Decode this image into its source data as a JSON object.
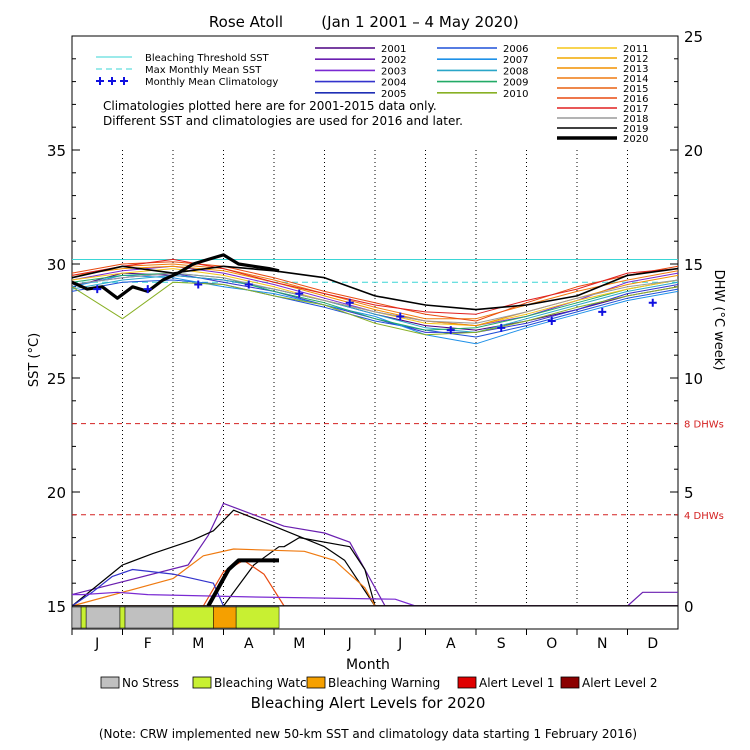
{
  "chart_data": {
    "type": "line",
    "title": "Rose Atoll",
    "date_range": "(Jan 1 2001 – 4 May 2020)",
    "xlabel": "Month",
    "ylabel": "SST (°C)",
    "y2label": "DHW (°C week)",
    "months": [
      "J",
      "F",
      "M",
      "A",
      "M",
      "J",
      "J",
      "A",
      "S",
      "O",
      "N",
      "D"
    ],
    "sst_axis": {
      "min": 15,
      "max": 40,
      "ticks": [
        15,
        20,
        25,
        30,
        35
      ]
    },
    "dhw_axis": {
      "min": 0,
      "max": 25,
      "ticks": [
        0,
        5,
        10,
        15,
        20,
        25
      ]
    },
    "grid": "vertical dotted lines at month boundaries",
    "reference_lines": {
      "bleaching_threshold_sst": 30.2,
      "max_monthly_mean_sst": 29.2,
      "dhw_thresholds": [
        {
          "value": 8,
          "label": "8 DHWs",
          "color": "#d42020"
        },
        {
          "value": 4,
          "label": "4 DHWs",
          "color": "#d42020"
        }
      ]
    },
    "legend_refs": [
      {
        "label": "Bleaching Threshold SST",
        "color": "#3ad6d6",
        "style": "solid"
      },
      {
        "label": "Max Monthly Mean SST",
        "color": "#3ad6d6",
        "style": "dashed"
      },
      {
        "label": "Monthly Mean Climatology",
        "color": "#1010e0",
        "style": "plus"
      }
    ],
    "monthly_mean_climatology": [
      28.9,
      28.9,
      29.1,
      29.1,
      28.7,
      28.3,
      27.7,
      27.1,
      27.2,
      27.5,
      27.9,
      28.3
    ],
    "notes": [
      "Climatologies plotted here are for 2001-2015 data only.",
      "Different SST and climatologies are used for 2016 and later."
    ],
    "years": [
      {
        "name": "2001",
        "color": "#4b0082"
      },
      {
        "name": "2002",
        "color": "#6a1fb0"
      },
      {
        "name": "2003",
        "color": "#7a2ad2"
      },
      {
        "name": "2004",
        "color": "#3333cc"
      },
      {
        "name": "2005",
        "color": "#1f2fb5"
      },
      {
        "name": "2006",
        "color": "#1e50d8"
      },
      {
        "name": "2007",
        "color": "#1e90e8"
      },
      {
        "name": "2008",
        "color": "#2aa6c8"
      },
      {
        "name": "2009",
        "color": "#22aa66"
      },
      {
        "name": "2010",
        "color": "#88b024"
      },
      {
        "name": "2011",
        "color": "#f5c518"
      },
      {
        "name": "2012",
        "color": "#f2a800"
      },
      {
        "name": "2013",
        "color": "#f29000"
      },
      {
        "name": "2014",
        "color": "#ef7a10"
      },
      {
        "name": "2015",
        "color": "#e86010"
      },
      {
        "name": "2016",
        "color": "#e84a10"
      },
      {
        "name": "2017",
        "color": "#e02020"
      },
      {
        "name": "2018",
        "color": "#9a9a9a"
      },
      {
        "name": "2019",
        "color": "#000000"
      },
      {
        "name": "2020",
        "color": "#000000",
        "bold": true
      }
    ],
    "sst_series": [
      {
        "color": "#4b0082",
        "y": [
          29.0,
          29.6,
          29.5,
          29.3,
          28.9,
          28.4,
          27.8,
          27.3,
          27.1,
          27.5,
          28.0,
          28.6,
          29.0
        ]
      },
      {
        "color": "#7a2ad2",
        "y": [
          29.3,
          29.7,
          29.9,
          29.6,
          29.1,
          28.5,
          27.9,
          27.5,
          27.3,
          27.7,
          28.4,
          29.2,
          29.6
        ]
      },
      {
        "color": "#3333cc",
        "y": [
          29.1,
          29.4,
          29.6,
          29.2,
          28.8,
          28.2,
          27.6,
          27.0,
          27.0,
          27.4,
          28.0,
          28.7,
          29.1
        ]
      },
      {
        "color": "#1e50d8",
        "y": [
          28.8,
          29.2,
          29.3,
          29.1,
          28.6,
          28.1,
          27.5,
          27.1,
          26.8,
          27.3,
          27.9,
          28.5,
          28.9
        ]
      },
      {
        "color": "#1e90e8",
        "y": [
          29.0,
          29.5,
          29.4,
          29.0,
          28.7,
          28.2,
          27.7,
          26.9,
          26.5,
          27.2,
          27.8,
          28.4,
          28.8
        ]
      },
      {
        "color": "#2aa6c8",
        "y": [
          28.9,
          29.3,
          29.5,
          29.3,
          28.9,
          28.4,
          27.8,
          27.2,
          27.0,
          27.6,
          28.2,
          28.8,
          29.2
        ]
      },
      {
        "color": "#22aa66",
        "y": [
          29.2,
          29.5,
          29.6,
          29.4,
          28.8,
          28.3,
          27.6,
          27.1,
          27.2,
          27.7,
          28.3,
          28.9,
          29.3
        ]
      },
      {
        "color": "#88b024",
        "y": [
          29.0,
          27.6,
          29.2,
          29.1,
          28.6,
          28.2,
          27.4,
          26.9,
          27.0,
          27.5,
          28.1,
          28.6,
          29.0
        ]
      },
      {
        "color": "#f5c518",
        "y": [
          29.3,
          29.6,
          29.8,
          29.5,
          29.0,
          28.4,
          27.9,
          27.4,
          27.3,
          27.8,
          28.4,
          28.9,
          29.3
        ]
      },
      {
        "color": "#f29000",
        "y": [
          29.5,
          29.8,
          29.9,
          29.7,
          29.2,
          28.6,
          28.0,
          27.5,
          27.3,
          27.9,
          28.5,
          29.1,
          29.5
        ]
      },
      {
        "color": "#ef7a10",
        "y": [
          29.4,
          29.9,
          30.0,
          29.8,
          29.3,
          28.7,
          28.1,
          27.6,
          27.6,
          28.2,
          28.8,
          29.3,
          29.7
        ]
      },
      {
        "color": "#e84a10",
        "y": [
          29.6,
          30.0,
          30.1,
          29.9,
          29.4,
          28.8,
          28.3,
          27.8,
          27.5,
          28.3,
          29.0,
          29.5,
          29.9
        ]
      },
      {
        "color": "#e02020",
        "y": [
          29.5,
          29.9,
          30.2,
          29.8,
          29.2,
          28.7,
          28.2,
          27.9,
          27.8,
          28.4,
          28.9,
          29.6,
          29.8
        ]
      },
      {
        "color": "#9a9a9a",
        "y": [
          29.1,
          29.4,
          29.6,
          29.4,
          28.9,
          28.4,
          27.9,
          27.5,
          27.4,
          27.9,
          28.5,
          29.0,
          29.3
        ]
      },
      {
        "color": "#000000",
        "width": 1.6,
        "y": [
          29.4,
          29.9,
          29.6,
          29.9,
          29.7,
          29.4,
          28.6,
          28.2,
          28.0,
          28.2,
          28.6,
          29.5,
          29.8
        ]
      },
      {
        "color": "#000000",
        "width": 3.2,
        "x": [
          0,
          0.3,
          0.6,
          0.9,
          1.2,
          1.5,
          1.8,
          2.1,
          2.4,
          2.7,
          3.0,
          3.3,
          3.6,
          3.9,
          4.1
        ],
        "y": [
          29.2,
          28.9,
          29.0,
          28.5,
          29.0,
          28.8,
          29.3,
          29.6,
          30.0,
          30.2,
          30.4,
          30.0,
          29.9,
          29.8,
          29.7
        ]
      }
    ],
    "dhw_series": [
      {
        "color": "#6a1fb0",
        "x": [
          0,
          2.3,
          2.7,
          3.0,
          3.6,
          4.2,
          5.0,
          5.5,
          6.2,
          8,
          11.0,
          11.3,
          12
        ],
        "y": [
          0.5,
          1.8,
          3.1,
          4.5,
          4.0,
          3.5,
          3.2,
          2.8,
          0,
          0,
          0,
          0.6,
          0.6
        ]
      },
      {
        "color": "#000000",
        "x": [
          0,
          1.0,
          1.6,
          2.4,
          2.8,
          3.2,
          4.0,
          5.0,
          5.4,
          6.0,
          12
        ],
        "y": [
          0,
          1.8,
          2.3,
          2.9,
          3.3,
          4.2,
          3.5,
          2.6,
          2.0,
          0,
          0
        ]
      },
      {
        "color": "#000000",
        "x": [
          0,
          3.0,
          3.6,
          4.1,
          4.2,
          4.5,
          5.5,
          5.8,
          6.0,
          12
        ],
        "y": [
          0,
          0,
          1.8,
          2.6,
          2.6,
          3.0,
          2.6,
          1.6,
          0,
          0
        ]
      },
      {
        "color": "#ef7a10",
        "x": [
          0,
          2.0,
          2.6,
          3.2,
          4.6,
          5.2,
          5.8,
          6.0,
          12
        ],
        "y": [
          0,
          1.2,
          2.2,
          2.5,
          2.4,
          2.0,
          0.8,
          0,
          0
        ]
      },
      {
        "color": "#e84a10",
        "x": [
          0,
          2.6,
          3.0,
          3.4,
          3.8,
          4.2,
          12
        ],
        "y": [
          0,
          0,
          1.5,
          2.0,
          1.4,
          0,
          0
        ]
      },
      {
        "color": "#3333cc",
        "x": [
          0,
          0.4,
          0.8,
          1.2,
          2.0,
          2.8,
          3.0,
          12
        ],
        "y": [
          0,
          0.6,
          1.3,
          1.6,
          1.4,
          1.0,
          0,
          0
        ]
      },
      {
        "color": "#7a2ad2",
        "x": [
          0,
          0.2,
          0.9,
          1.5,
          3.5,
          6.4,
          6.8,
          12
        ],
        "y": [
          0.5,
          0.5,
          0.6,
          0.5,
          0.4,
          0.3,
          0,
          0
        ]
      },
      {
        "color": "#000000",
        "width": 4,
        "x": [
          2.7,
          2.9,
          3.1,
          3.3,
          3.5,
          3.7,
          3.9,
          4.1
        ],
        "y": [
          0,
          0.8,
          1.6,
          2.0,
          2.0,
          2.0,
          2.0,
          2.0
        ]
      }
    ],
    "alert_bar_2020": [
      {
        "start": 0.0,
        "end": 0.18,
        "level": "No Stress"
      },
      {
        "start": 0.18,
        "end": 0.28,
        "level": "Bleaching Watch"
      },
      {
        "start": 0.28,
        "end": 0.95,
        "level": "No Stress"
      },
      {
        "start": 0.95,
        "end": 1.05,
        "level": "Bleaching Watch"
      },
      {
        "start": 1.05,
        "end": 2.0,
        "level": "No Stress"
      },
      {
        "start": 2.0,
        "end": 2.8,
        "level": "Bleaching Watch"
      },
      {
        "start": 2.8,
        "end": 3.25,
        "level": "Bleaching Warning"
      },
      {
        "start": 3.25,
        "end": 4.1,
        "level": "Bleaching Watch"
      }
    ],
    "alert_legend_title": "Bleaching Alert Levels for 2020",
    "alert_levels": [
      {
        "label": "No Stress",
        "color": "#c0c0c0"
      },
      {
        "label": "Bleaching Watch",
        "color": "#c8f032"
      },
      {
        "label": "Bleaching Warning",
        "color": "#f5a000"
      },
      {
        "label": "Alert Level 1",
        "color": "#e00000"
      },
      {
        "label": "Alert Level 2",
        "color": "#8b0000"
      }
    ],
    "footnote": "(Note: CRW implemented new 50-km SST and climatology data starting 1 February 2016)"
  }
}
